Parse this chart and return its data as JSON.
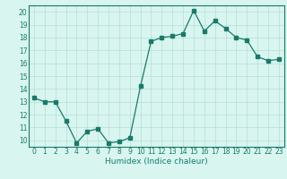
{
  "x": [
    0,
    1,
    2,
    3,
    4,
    5,
    6,
    7,
    8,
    9,
    10,
    11,
    12,
    13,
    14,
    15,
    16,
    17,
    18,
    19,
    20,
    21,
    22,
    23
  ],
  "y": [
    13.3,
    13.0,
    13.0,
    11.5,
    9.8,
    10.7,
    10.9,
    9.8,
    9.9,
    10.2,
    14.2,
    17.7,
    18.0,
    18.1,
    18.3,
    20.1,
    18.5,
    19.3,
    18.7,
    18.0,
    17.8,
    16.5,
    16.2,
    16.3
  ],
  "xlabel": "Humidex (Indice chaleur)",
  "xlim": [
    -0.5,
    23.5
  ],
  "ylim": [
    9.5,
    20.5
  ],
  "yticks": [
    10,
    11,
    12,
    13,
    14,
    15,
    16,
    17,
    18,
    19,
    20
  ],
  "xticks": [
    0,
    1,
    2,
    3,
    4,
    5,
    6,
    7,
    8,
    9,
    10,
    11,
    12,
    13,
    14,
    15,
    16,
    17,
    18,
    19,
    20,
    21,
    22,
    23
  ],
  "line_color": "#1a7a6a",
  "bg_color": "#d8f5f0",
  "grid_color": "#b8ddd8",
  "tick_label_fontsize": 5.5,
  "xlabel_fontsize": 6.5
}
